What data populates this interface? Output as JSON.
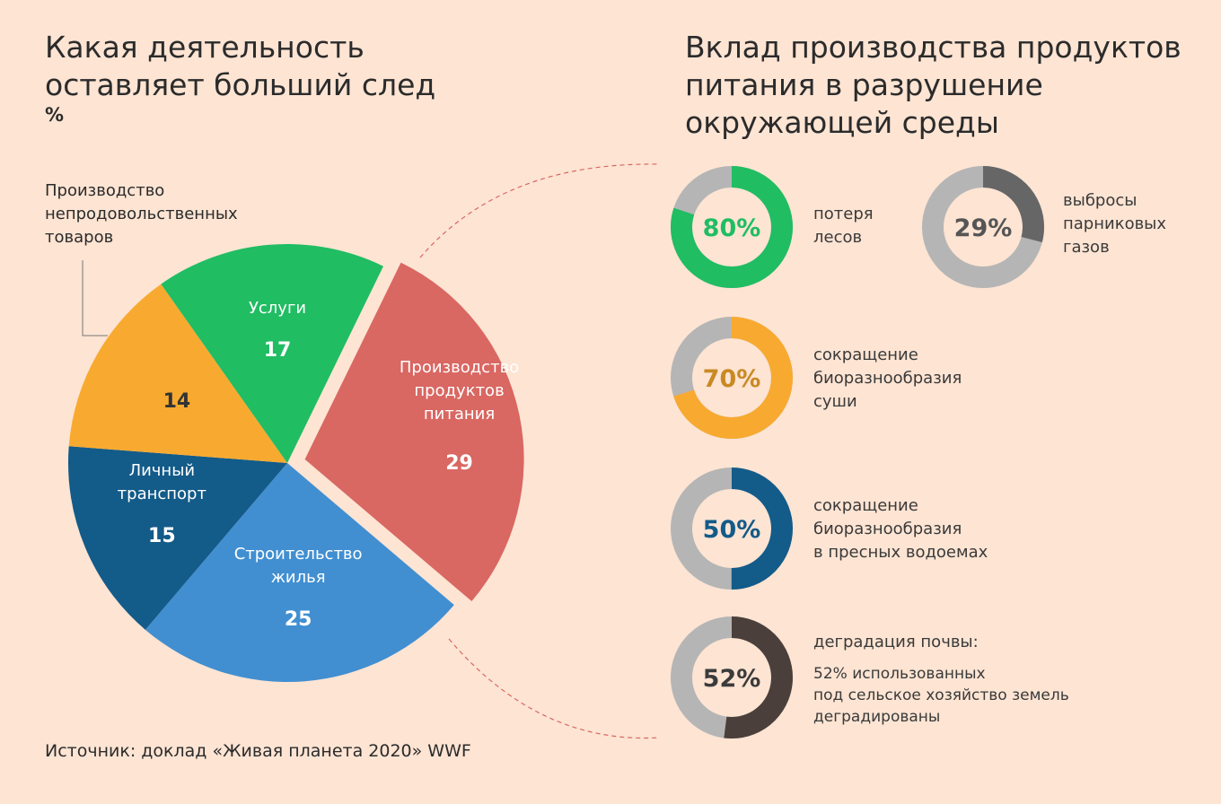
{
  "left": {
    "title_line1": "Какая деятельность",
    "title_line2": "оставляет больший след",
    "unit": "%"
  },
  "right": {
    "title_line1": "Вклад производства продуктов",
    "title_line2": "питания в разрушение",
    "title_line3": "окружающей среды"
  },
  "source": "Источник: доклад «Живая планета 2020» WWF",
  "callout": {
    "line1": "Производство",
    "line2": "непродовольственных",
    "line3": "товаров"
  },
  "chart_data": [
    {
      "type": "pie",
      "title": "Какая деятельность оставляет больший след",
      "unit": "%",
      "slices": [
        {
          "label": "Производство продуктов питания",
          "value": 29,
          "color": "#d96762"
        },
        {
          "label": "Строительство жилья",
          "value": 25,
          "color": "#418fd1"
        },
        {
          "label": "Личный транспорт",
          "value": 15,
          "color": "#135b89"
        },
        {
          "label": "Производство непродовольственных товаров",
          "value": 14,
          "color": "#f8aa30"
        },
        {
          "label": "Услуги",
          "value": 17,
          "color": "#20bd63"
        }
      ]
    },
    {
      "type": "pie",
      "title": "Вклад производства продуктов питания в разрушение окружающей среды",
      "donuts": [
        {
          "value": 80,
          "display": "80%",
          "label_lines": [
            "потеря",
            "лесов"
          ],
          "color": "#20bd63",
          "text_color": "#20bd63"
        },
        {
          "value": 29,
          "display": "29%",
          "label_lines": [
            "выбросы",
            "парниковых",
            "газов"
          ],
          "color": "#666666",
          "text_color": "#555555"
        },
        {
          "value": 70,
          "display": "70%",
          "label_lines": [
            "сокращение",
            "биоразнообразия",
            "суши"
          ],
          "color": "#f8aa30",
          "text_color": "#c98a24"
        },
        {
          "value": 50,
          "display": "50%",
          "label_lines": [
            "сокращение",
            "биоразнообразия",
            "в пресных водоемах"
          ],
          "color": "#135b89",
          "text_color": "#135b89"
        },
        {
          "value": 52,
          "display": "52%",
          "label_lines": [
            "деградация почвы:"
          ],
          "note_lines": [
            "52% использованных",
            "под сельское хозяйство земель",
            "деградированы"
          ],
          "color": "#4b3f3b",
          "text_color": "#3b3b3b"
        }
      ]
    }
  ]
}
